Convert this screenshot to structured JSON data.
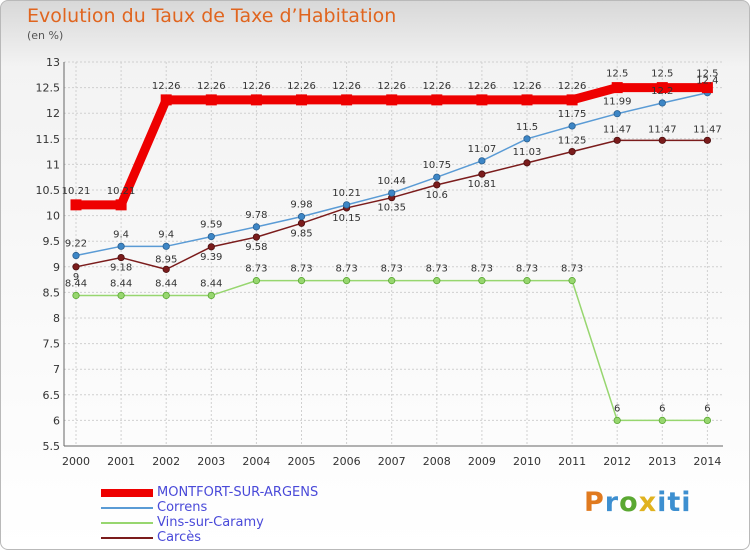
{
  "header": {
    "title": "Evolution du Taux de Taxe d’Habitation",
    "subtitle": "(en %)"
  },
  "logo": {
    "text": "Proxiti"
  },
  "chart_data": {
    "type": "line",
    "title": "Evolution du Taux de Taxe d’Habitation",
    "ylabel": "(en %)",
    "xlabel": "",
    "ylim": [
      5.5,
      13
    ],
    "yticks": [
      "5.5",
      "6",
      "6.5",
      "7",
      "7.5",
      "8",
      "8.5",
      "9",
      "9.5",
      "10",
      "10.5",
      "11",
      "11.5",
      "12",
      "12.5",
      "13"
    ],
    "grid": true,
    "legend_position": "bottom-left",
    "x": [
      "2000",
      "2001",
      "2002",
      "2003",
      "2004",
      "2005",
      "2006",
      "2007",
      "2008",
      "2009",
      "2010",
      "2011",
      "2012",
      "2013",
      "2014"
    ],
    "series": [
      {
        "name": "MONTFORT-SUR-ARGENS",
        "color": "#ee0000",
        "values": [
          10.21,
          10.21,
          12.26,
          12.26,
          12.26,
          12.26,
          12.26,
          12.26,
          12.26,
          12.26,
          12.26,
          12.26,
          12.5,
          12.5,
          12.5
        ],
        "labels": [
          "10.21",
          "10.21",
          "12.26",
          "12.26",
          "12.26",
          "12.26",
          "12.26",
          "12.26",
          "12.26",
          "12.26",
          "12.26",
          "12.26",
          "12.5",
          "12.5",
          "12.5"
        ]
      },
      {
        "name": "Correns",
        "color": "#5a9bd5",
        "values": [
          9.22,
          9.4,
          9.4,
          9.59,
          9.78,
          9.98,
          10.21,
          10.44,
          10.75,
          11.07,
          11.5,
          11.75,
          11.99,
          12.2,
          12.4
        ],
        "labels": [
          "9.22",
          "9.4",
          "9.4",
          "9.59",
          "9.78",
          "9.98",
          "10.21",
          "10.44",
          "10.75",
          "11.07",
          "11.5",
          "11.75",
          "11.99",
          "12.2",
          "12.4"
        ]
      },
      {
        "name": "Vins-sur-Caramy",
        "color": "#97d66f",
        "values": [
          8.44,
          8.44,
          8.44,
          8.44,
          8.73,
          8.73,
          8.73,
          8.73,
          8.73,
          8.73,
          8.73,
          8.73,
          6,
          6,
          6
        ],
        "labels": [
          "8.44",
          "8.44",
          "8.44",
          "8.44",
          "8.73",
          "8.73",
          "8.73",
          "8.73",
          "8.73",
          "8.73",
          "8.73",
          "8.73",
          "6",
          "6",
          "6"
        ]
      },
      {
        "name": "Carcès",
        "color": "#7b1c1c",
        "values": [
          9.0,
          9.18,
          8.95,
          9.39,
          9.58,
          9.85,
          10.15,
          10.35,
          10.6,
          10.81,
          11.03,
          11.25,
          11.47,
          11.47,
          11.47
        ],
        "labels": [
          "9",
          "9.18",
          "8.95",
          "9.39",
          "9.58",
          "9.85",
          "10.15",
          "10.35",
          "10.6",
          "10.81",
          "11.03",
          "11.25",
          "11.47",
          "11.47",
          "11.47"
        ]
      }
    ]
  }
}
